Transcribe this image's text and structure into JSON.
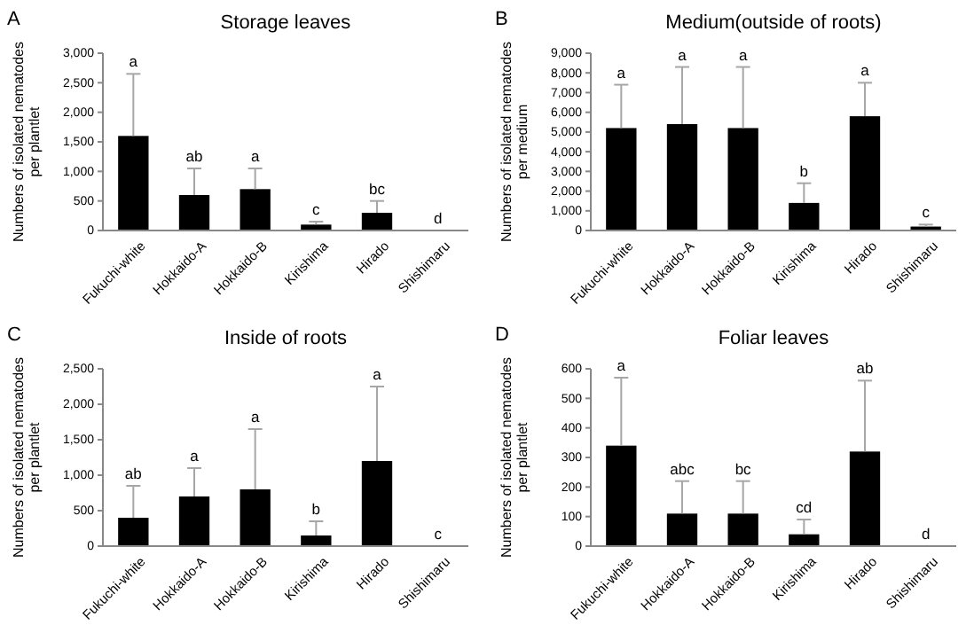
{
  "chart_data": [
    {
      "type": "bar",
      "title": "Storage leaves",
      "ylabel": "Numbers of isolated nematodes per plantlet",
      "categories": [
        "Fukuchi-white",
        "Hokkaido-A",
        "Hokkaido-B",
        "Kirishima",
        "Hirado",
        "Shishimaru"
      ],
      "values": [
        1600,
        600,
        700,
        100,
        300,
        0
      ],
      "color": "#000000",
      "errors": [
        [
          1600,
          2650
        ],
        [
          600,
          1050
        ],
        [
          700,
          1050
        ],
        [
          100,
          150
        ],
        [
          300,
          500
        ],
        null
      ],
      "ylim": [
        0,
        3000
      ],
      "yticks": [
        0,
        500,
        {
          "value": 1000,
          "label": "1,000"
        },
        {
          "value": 1500,
          "label": "1,500"
        },
        {
          "value": 2000,
          "label": "2,000"
        },
        {
          "value": 2500,
          "label": "2,500"
        },
        {
          "value": 3000,
          "label": "3,000"
        }
      ],
      "grid": false,
      "annotations": [
        "A",
        {
          "text": "a",
          "x": "Fukuchi-white",
          "y": 2650
        },
        {
          "text": "ab",
          "x": "Hokkaido-A",
          "y": 1050
        },
        {
          "text": "a",
          "x": "Hokkaido-B",
          "y": 1050
        },
        {
          "text": "c",
          "x": "Kirishima",
          "y": 150
        },
        {
          "text": "bc",
          "x": "Hirado",
          "y": 500
        },
        {
          "text": "d",
          "x": "Shishimaru",
          "y": 0
        }
      ]
    },
    {
      "type": "bar",
      "title": "Medium(outside of roots)",
      "ylabel": "Numbers of isolated nematodes per medium",
      "categories": [
        "Fukuchi-white",
        "Hokkaido-A",
        "Hokkaido-B",
        "Kirishima",
        "Hirado",
        "Shishimaru"
      ],
      "values": [
        5200,
        5400,
        5200,
        1400,
        5800,
        200
      ],
      "color": "#000000",
      "errors": [
        [
          5200,
          7400
        ],
        [
          5400,
          8300
        ],
        [
          5200,
          8300
        ],
        [
          1400,
          2400
        ],
        [
          5800,
          7500
        ],
        [
          200,
          300
        ]
      ],
      "ylim": [
        0,
        9000
      ],
      "yticks": [
        0,
        {
          "value": 1000,
          "label": "1,000"
        },
        {
          "value": 2000,
          "label": "2,000"
        },
        {
          "value": 3000,
          "label": "3,000"
        },
        {
          "value": 4000,
          "label": "4,000"
        },
        {
          "value": 5000,
          "label": "5,000"
        },
        {
          "value": 6000,
          "label": "6,000"
        },
        {
          "value": 7000,
          "label": "7,000"
        },
        {
          "value": 8000,
          "label": "8,000"
        },
        {
          "value": 9000,
          "label": "9,000"
        }
      ],
      "grid": false,
      "annotations": [
        "B",
        {
          "text": "a",
          "x": "Fukuchi-white",
          "y": 7400
        },
        {
          "text": "a",
          "x": "Hokkaido-A",
          "y": 8300
        },
        {
          "text": "a",
          "x": "Hokkaido-B",
          "y": 8300
        },
        {
          "text": "b",
          "x": "Kirishima",
          "y": 2400
        },
        {
          "text": "a",
          "x": "Hirado",
          "y": 7500
        },
        {
          "text": "c",
          "x": "Shishimaru",
          "y": 300
        }
      ]
    },
    {
      "type": "bar",
      "title": "Inside of roots",
      "ylabel": "Numbers of isolated nematodes per plantlet",
      "categories": [
        "Fukuchi-white",
        "Hokkaido-A",
        "Hokkaido-B",
        "Kirishima",
        "Hirado",
        "Shishimaru"
      ],
      "values": [
        400,
        700,
        800,
        150,
        1200,
        0
      ],
      "color": "#000000",
      "errors": [
        [
          400,
          850
        ],
        [
          700,
          1100
        ],
        [
          800,
          1650
        ],
        [
          150,
          350
        ],
        [
          1200,
          2250
        ],
        null
      ],
      "ylim": [
        0,
        2500
      ],
      "yticks": [
        0,
        500,
        {
          "value": 1000,
          "label": "1,000"
        },
        {
          "value": 1500,
          "label": "1,500"
        },
        {
          "value": 2000,
          "label": "2,000"
        },
        {
          "value": 2500,
          "label": "2,500"
        }
      ],
      "grid": false,
      "annotations": [
        "C",
        {
          "text": "ab",
          "x": "Fukuchi-white",
          "y": 850
        },
        {
          "text": "a",
          "x": "Hokkaido-A",
          "y": 1100
        },
        {
          "text": "a",
          "x": "Hokkaido-B",
          "y": 1650
        },
        {
          "text": "b",
          "x": "Kirishima",
          "y": 350
        },
        {
          "text": "a",
          "x": "Hirado",
          "y": 2250
        },
        {
          "text": "c",
          "x": "Shishimaru",
          "y": 0
        }
      ]
    },
    {
      "type": "bar",
      "title": "Foliar leaves",
      "ylabel": "Numbers of isolated nematodes per plantlet",
      "categories": [
        "Fukuchi-white",
        "Hokkaido-A",
        "Hokkaido-B",
        "Kirishima",
        "Hirado",
        "Shishimaru"
      ],
      "values": [
        340,
        110,
        110,
        40,
        320,
        0
      ],
      "color": "#000000",
      "errors": [
        [
          340,
          570
        ],
        [
          110,
          220
        ],
        [
          110,
          220
        ],
        [
          40,
          90
        ],
        [
          320,
          560
        ],
        null
      ],
      "ylim": [
        0,
        600
      ],
      "yticks": [
        0,
        100,
        200,
        300,
        400,
        500,
        600
      ],
      "grid": false,
      "annotations": [
        "D",
        {
          "text": "a",
          "x": "Fukuchi-white",
          "y": 570
        },
        {
          "text": "abc",
          "x": "Hokkaido-A",
          "y": 220
        },
        {
          "text": "bc",
          "x": "Hokkaido-B",
          "y": 220
        },
        {
          "text": "cd",
          "x": "Kirishima",
          "y": 90
        },
        {
          "text": "ab",
          "x": "Hirado",
          "y": 560
        },
        {
          "text": "d",
          "x": "Shishimaru",
          "y": 0
        }
      ]
    }
  ]
}
